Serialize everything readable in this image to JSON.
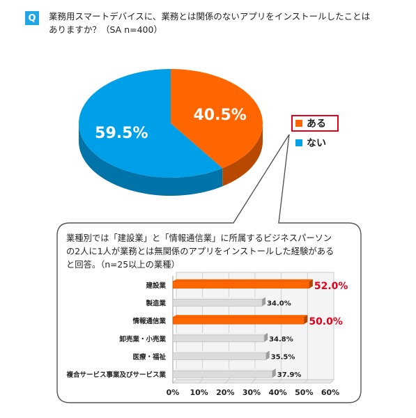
{
  "question": {
    "badge": "Q",
    "line1": "業務用スマートデバイスに、業務とは関係のないアプリをインストールしたことは",
    "line2": "ありますか？（SA n=400）"
  },
  "legend": {
    "items": [
      {
        "label": "ある",
        "color": "#ff6600",
        "highlight": true
      },
      {
        "label": "ない",
        "color": "#00a0e9",
        "highlight": false
      }
    ]
  },
  "callout": {
    "line1": "業種別では「建設業」と「情報通信業」に所属するビジネスパーソン",
    "line2": "の2人に1人が業務とは無関係のアプリをインストールした経験がある",
    "line3": "と回答。（n=25以上の業種）"
  },
  "chart_data": [
    {
      "type": "pie",
      "labels": [
        "ある",
        "ない"
      ],
      "values": [
        40.5,
        59.5
      ],
      "value_labels": [
        "40.5%",
        "59.5%"
      ],
      "colors": [
        "#ff6600",
        "#00a0e9"
      ]
    },
    {
      "type": "bar",
      "orientation": "horizontal",
      "categories": [
        "建設業",
        "製造業",
        "情報通信業",
        "卸売業・小売業",
        "医療・福祉",
        "複合サービス事業及びサービス業"
      ],
      "values": [
        52.0,
        34.0,
        50.0,
        34.8,
        35.5,
        37.9
      ],
      "value_labels": [
        "52.0%",
        "34.0%",
        "50.0%",
        "34.8%",
        "35.5%",
        "37.9%"
      ],
      "highlighted": [
        true,
        false,
        true,
        false,
        false,
        false
      ],
      "xlim": [
        0,
        60
      ],
      "xticks": [
        "0%",
        "10%",
        "20%",
        "30%",
        "40%",
        "50%",
        "60%"
      ],
      "grid": true,
      "highlight_color": "#ff6600",
      "normal_color": "#d9d9d9",
      "highlight_label_color": "#e3001b"
    }
  ]
}
